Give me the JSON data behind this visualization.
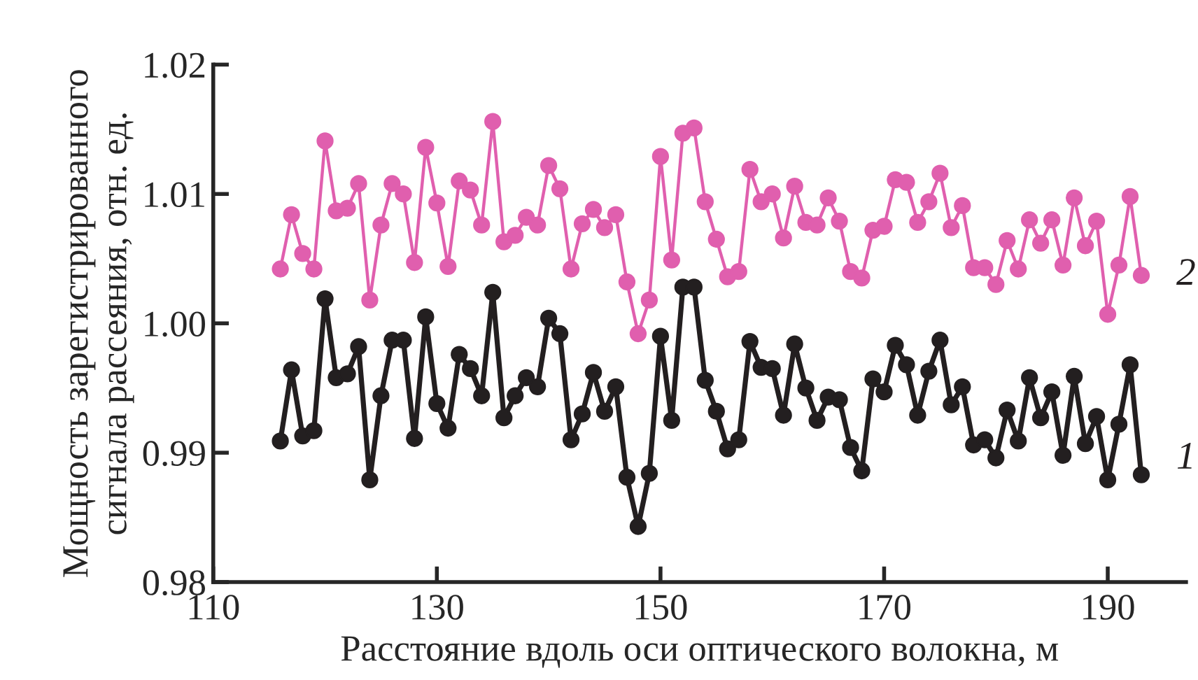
{
  "chart_data": {
    "type": "line",
    "xlabel": "Расстояние вдоль оси оптического волокна, м",
    "ylabel": "Мощность зарегистрированного\nсигнала рассеяния, отн. ед.",
    "x": [
      116,
      117,
      118,
      119,
      120,
      121,
      122,
      123,
      124,
      125,
      126,
      127,
      128,
      129,
      130,
      131,
      132,
      133,
      134,
      135,
      136,
      137,
      138,
      139,
      140,
      141,
      142,
      143,
      144,
      145,
      146,
      147,
      148,
      149,
      150,
      151,
      152,
      153,
      154,
      155,
      156,
      157,
      158,
      159,
      160,
      161,
      162,
      163,
      164,
      165,
      166,
      167,
      168,
      169,
      170,
      171,
      172,
      173,
      174,
      175,
      176,
      177,
      178,
      179,
      180,
      181,
      182,
      183,
      184,
      185,
      186,
      187,
      188,
      189,
      190,
      191,
      192,
      193
    ],
    "series": [
      {
        "name": "1",
        "color": "#231f20",
        "values": [
          0.9909,
          0.9964,
          0.9913,
          0.9917,
          1.0019,
          0.9958,
          0.9961,
          0.9982,
          0.9879,
          0.9944,
          0.9987,
          0.9987,
          0.9911,
          1.0005,
          0.9938,
          0.9919,
          0.9976,
          0.9965,
          0.9944,
          1.0024,
          0.9927,
          0.9944,
          0.9958,
          0.9951,
          1.0004,
          0.9992,
          0.991,
          0.993,
          0.9962,
          0.9932,
          0.9951,
          0.9881,
          0.9843,
          0.9884,
          0.999,
          0.9925,
          1.0028,
          1.0028,
          0.9956,
          0.9932,
          0.9903,
          0.991,
          0.9986,
          0.9966,
          0.9965,
          0.9929,
          0.9984,
          0.995,
          0.9925,
          0.9943,
          0.9941,
          0.9904,
          0.9886,
          0.9957,
          0.9947,
          0.9983,
          0.9968,
          0.9929,
          0.9963,
          0.9987,
          0.9937,
          0.9951,
          0.9906,
          0.991,
          0.9896,
          0.9933,
          0.9909,
          0.9958,
          0.9927,
          0.9947,
          0.9898,
          0.9959,
          0.9907,
          0.9928,
          0.9879,
          0.9922,
          0.9968,
          0.9883
        ]
      },
      {
        "name": "2",
        "color": "#e05fae",
        "values": [
          1.0042,
          1.0084,
          1.0054,
          1.0042,
          1.0141,
          1.0087,
          1.0089,
          1.0108,
          1.0018,
          1.0076,
          1.0108,
          1.01,
          1.0047,
          1.0136,
          1.0093,
          1.0044,
          1.011,
          1.0103,
          1.0076,
          1.0156,
          1.0063,
          1.0068,
          1.0082,
          1.0076,
          1.0122,
          1.0104,
          1.0042,
          1.0077,
          1.0088,
          1.0074,
          1.0084,
          1.0032,
          0.9992,
          1.0018,
          1.0129,
          1.0049,
          1.0147,
          1.0151,
          1.0094,
          1.0065,
          1.0036,
          1.004,
          1.0119,
          1.0094,
          1.01,
          1.0066,
          1.0106,
          1.0078,
          1.0076,
          1.0097,
          1.0079,
          1.004,
          1.0035,
          1.0072,
          1.0075,
          1.0111,
          1.0109,
          1.0078,
          1.0094,
          1.0116,
          1.0074,
          1.0091,
          1.0043,
          1.0043,
          1.003,
          1.0064,
          1.0042,
          1.008,
          1.0062,
          1.008,
          1.0045,
          1.0097,
          1.006,
          1.0079,
          1.0007,
          1.0045,
          1.0098,
          1.0037
        ]
      }
    ],
    "xlim": [
      110,
      197
    ],
    "xticks": [
      110,
      130,
      150,
      170,
      190
    ],
    "ylim": [
      0.98,
      1.02
    ],
    "yticks": [
      {
        "value": 0.98,
        "label": "0.98"
      },
      {
        "value": 0.99,
        "label": "0.99"
      },
      {
        "value": 1.0,
        "label": "1.00"
      },
      {
        "value": 1.01,
        "label": "1.01"
      },
      {
        "value": 1.02,
        "label": "1.02"
      }
    ],
    "marker": "circle",
    "line_style": "solid",
    "grid": false,
    "legend": false
  }
}
